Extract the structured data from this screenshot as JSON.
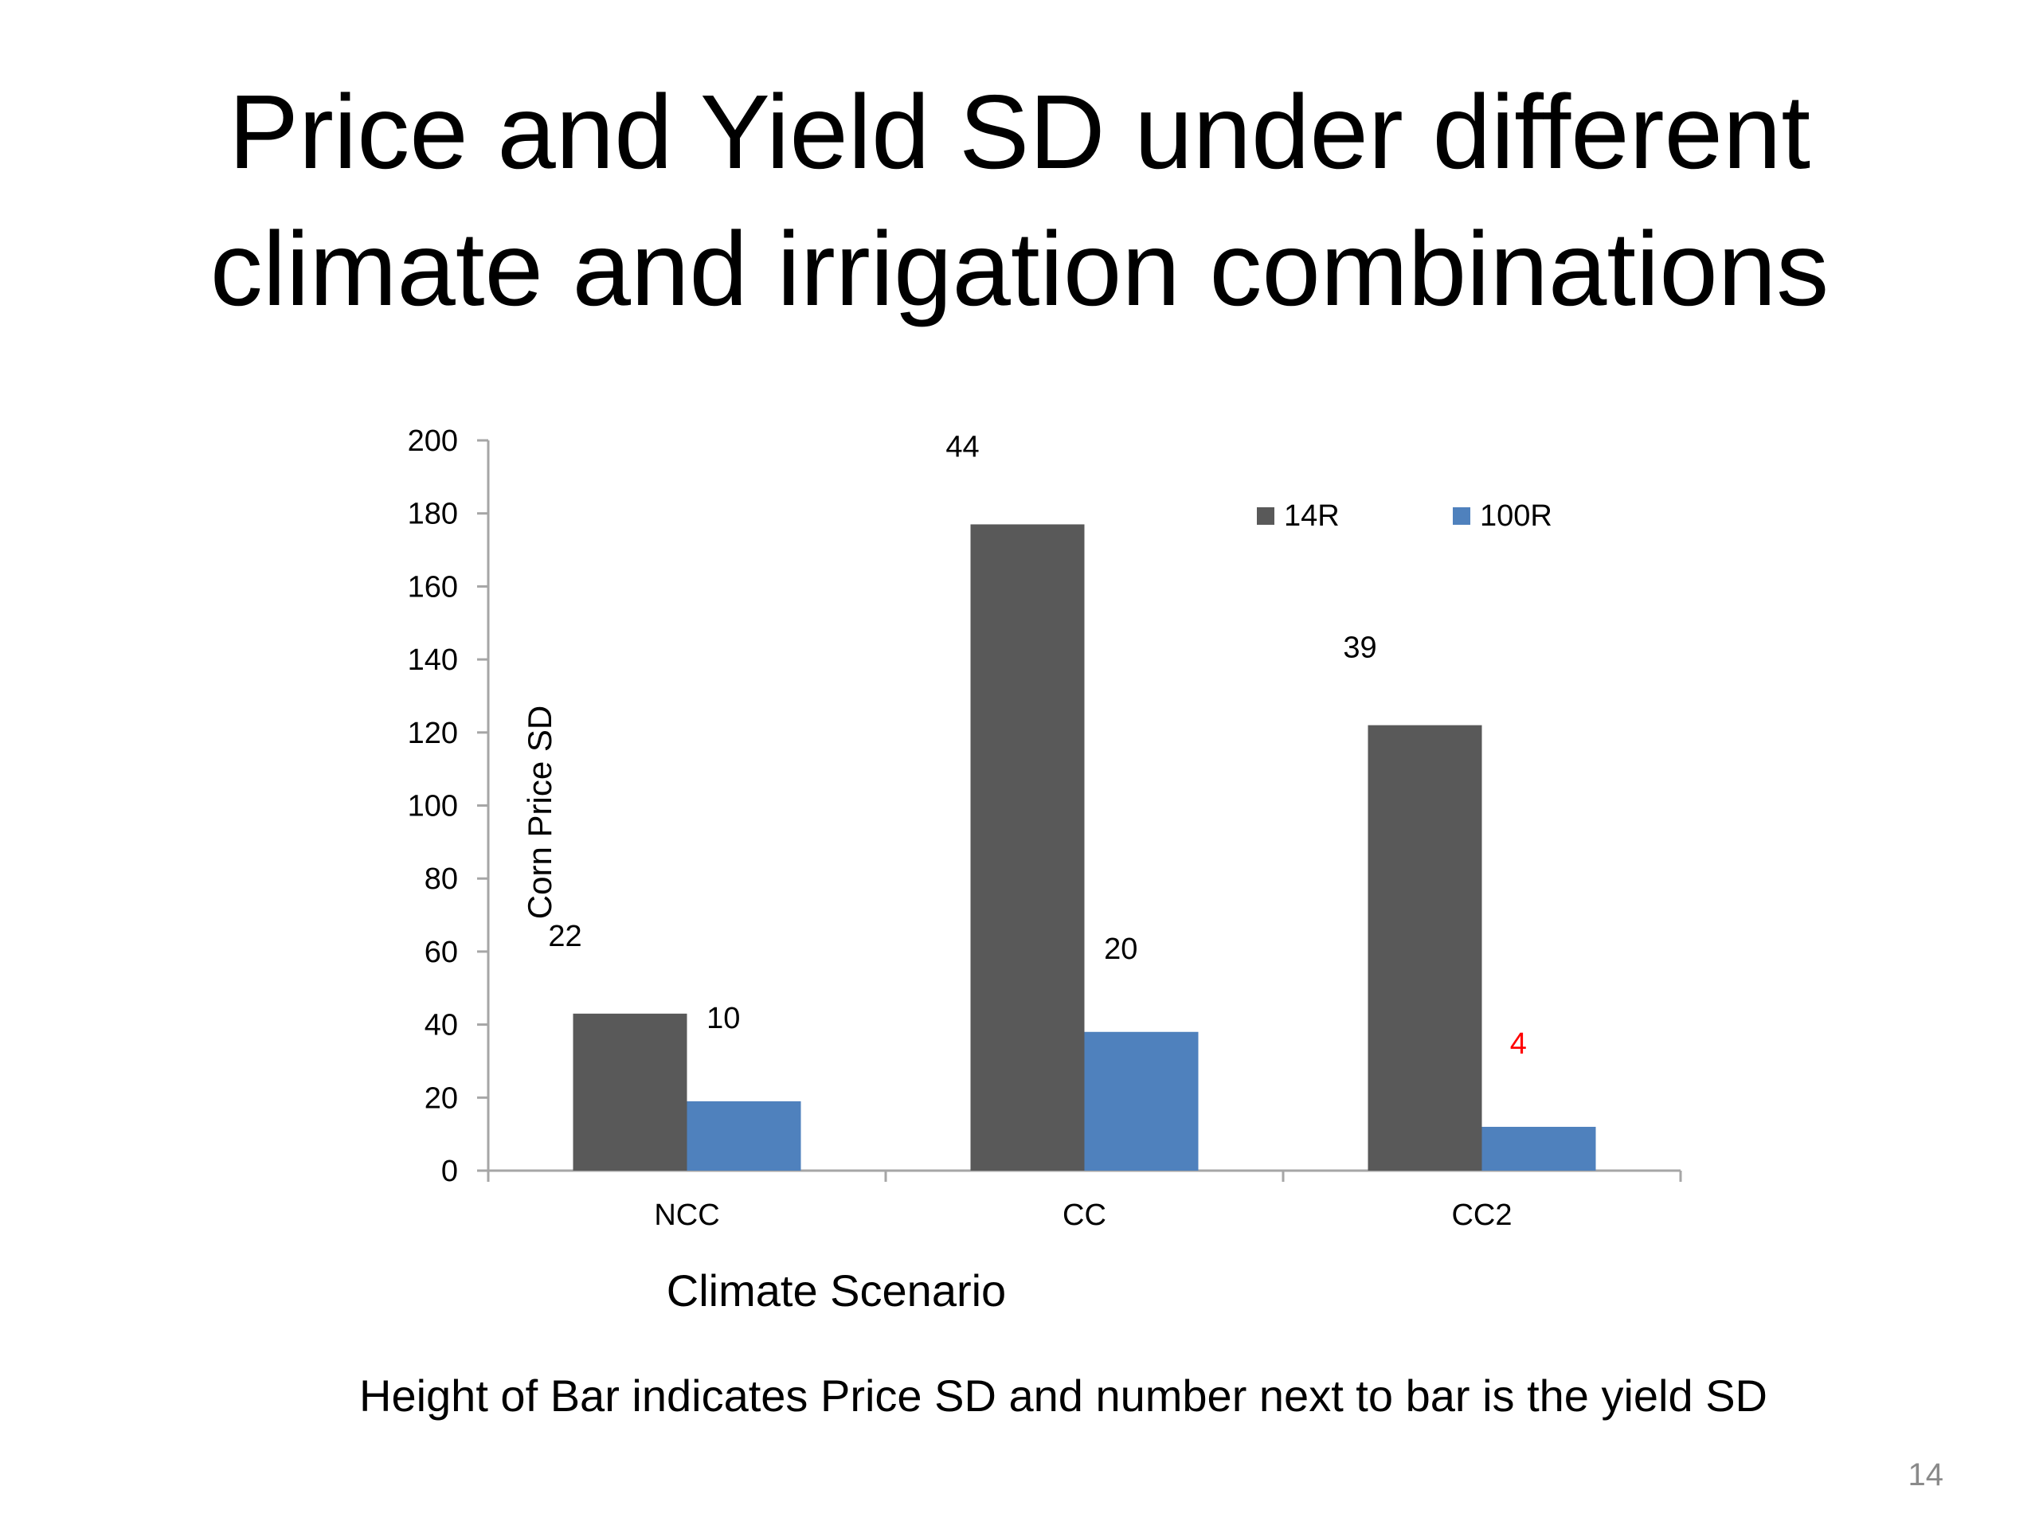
{
  "slide": {
    "title_line1": "Price and Yield SD under different",
    "title_line2": "climate and irrigation combinations",
    "footnote": "Height of Bar indicates Price SD and number next to bar is the yield SD",
    "page_number": "14"
  },
  "colors": {
    "series_14R": "#595959",
    "series_100R": "#4f81bd",
    "axis": "#a6a6a6",
    "highlight_label": "#ff0000"
  },
  "chart_data": {
    "type": "bar",
    "title": "",
    "xlabel": "Climate Scenario",
    "ylabel": "Corn Price SD",
    "ylim": [
      0,
      200
    ],
    "yticks": [
      0,
      20,
      40,
      60,
      80,
      100,
      120,
      140,
      160,
      180,
      200
    ],
    "categories": [
      "NCC",
      "CC",
      "CC2"
    ],
    "legend_position": "top-right",
    "series": [
      {
        "name": "14R",
        "values": [
          43,
          177,
          122
        ],
        "labels": [
          "22",
          "44",
          "39"
        ]
      },
      {
        "name": "100R",
        "values": [
          19,
          38,
          12
        ],
        "labels": [
          "10",
          "20",
          "4"
        ]
      }
    ],
    "highlighted_labels": [
      {
        "series": 1,
        "index": 2
      }
    ]
  }
}
